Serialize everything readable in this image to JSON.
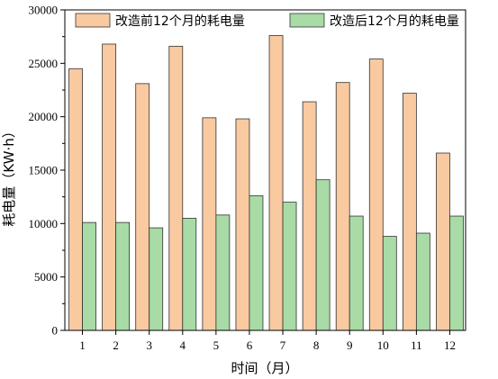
{
  "chart_data": {
    "type": "bar",
    "categories": [
      "1",
      "2",
      "3",
      "4",
      "5",
      "6",
      "7",
      "8",
      "9",
      "10",
      "11",
      "12"
    ],
    "series": [
      {
        "name": "改造前12个月的耗电量",
        "color": "#f9c9a0",
        "values": [
          24500,
          26800,
          23100,
          26600,
          19900,
          19800,
          27600,
          21400,
          23200,
          25400,
          22200,
          16600
        ]
      },
      {
        "name": "改造后12个月的耗电量",
        "color": "#a8dba6",
        "values": [
          10100,
          10100,
          9600,
          10500,
          10800,
          12600,
          12000,
          14100,
          10700,
          8800,
          9100,
          10700
        ]
      }
    ],
    "xlabel": "时间（月）",
    "ylabel": "耗电量（KW·h）",
    "ylim": [
      0,
      30000
    ],
    "yticks": [
      0,
      5000,
      10000,
      15000,
      20000,
      25000,
      30000
    ],
    "grid": false,
    "legend_position": "top"
  }
}
